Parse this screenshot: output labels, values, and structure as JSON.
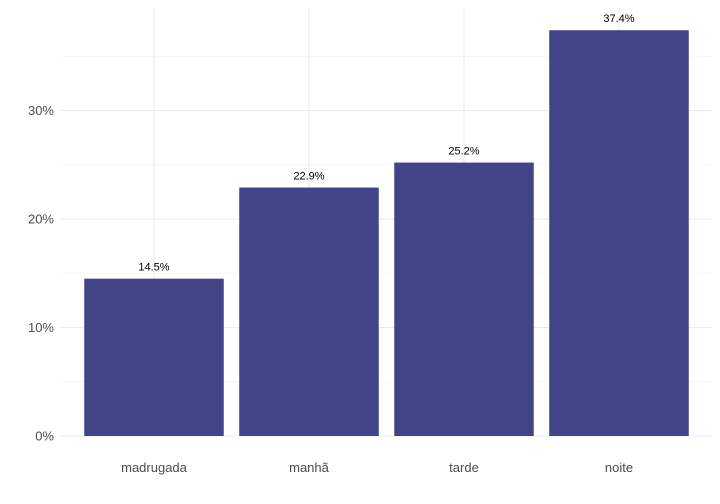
{
  "chart_data": {
    "type": "bar",
    "categories": [
      "madrugada",
      "manhã",
      "tarde",
      "noite"
    ],
    "values": [
      14.5,
      22.9,
      25.2,
      37.4
    ],
    "data_labels": [
      "14.5%",
      "22.9%",
      "25.2%",
      "37.4%"
    ],
    "title": "",
    "xlabel": "",
    "ylabel": "",
    "ylim": [
      0,
      37.4
    ],
    "yticks": [
      0,
      10,
      20,
      30
    ],
    "ytick_labels": [
      "0%",
      "10%",
      "20%",
      "30%"
    ],
    "grid": true,
    "legend": "none",
    "bar_color": "#414487"
  }
}
